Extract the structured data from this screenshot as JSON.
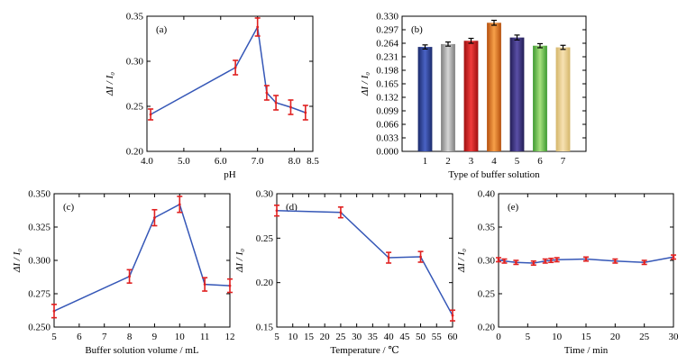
{
  "colors": {
    "line": "#3557b7",
    "errorbar": "#e02020",
    "bar_errorbar": "#000000"
  },
  "chart_data": [
    {
      "id": "a",
      "type": "line",
      "panel_label": "(a)",
      "xlabel": "pH",
      "ylabel": "ΔI / I₀",
      "xlim": [
        4.0,
        8.5
      ],
      "ylim": [
        0.2,
        0.35
      ],
      "xticks": [
        "4.0",
        "5.0",
        "6.0",
        "7.0",
        "8.0",
        "8.5"
      ],
      "xtick_values": [
        4.0,
        5.0,
        6.0,
        7.0,
        8.0,
        8.5
      ],
      "yticks": [
        "0.20",
        "0.25",
        "0.30",
        "0.35"
      ],
      "ytick_values": [
        0.2,
        0.25,
        0.3,
        0.35
      ],
      "x": [
        4.1,
        6.4,
        7.0,
        7.25,
        7.5,
        7.9,
        8.3
      ],
      "y": [
        0.241,
        0.293,
        0.338,
        0.265,
        0.254,
        0.249,
        0.243
      ],
      "err": [
        0.006,
        0.008,
        0.01,
        0.008,
        0.008,
        0.008,
        0.008
      ]
    },
    {
      "id": "b",
      "type": "bar",
      "panel_label": "(b)",
      "xlabel": "Type of buffer solution",
      "ylabel": "ΔI / I₀",
      "categories": [
        "1",
        "2",
        "3",
        "4",
        "5",
        "6",
        "7"
      ],
      "values": [
        0.255,
        0.262,
        0.27,
        0.314,
        0.278,
        0.258,
        0.254
      ],
      "err": [
        0.005,
        0.005,
        0.006,
        0.006,
        0.006,
        0.005,
        0.005
      ],
      "bar_colors": [
        [
          "#1b2a6b",
          "#4a63c4"
        ],
        [
          "#7d7d7d",
          "#d6d6d6"
        ],
        [
          "#9e0f0f",
          "#f03c3c"
        ],
        [
          "#b5500d",
          "#f7a04a"
        ],
        [
          "#221d55",
          "#5a4fa6"
        ],
        [
          "#3d9a30",
          "#a6e07e"
        ],
        [
          "#d4b56a",
          "#f7e2b2"
        ]
      ],
      "ylim": [
        0.0,
        0.33
      ],
      "yticks": [
        "0.000",
        "0.033",
        "0.066",
        "0.099",
        "0.132",
        "0.165",
        "0.198",
        "0.231",
        "0.264",
        "0.297",
        "0.330"
      ],
      "ytick_values": [
        0.0,
        0.033,
        0.066,
        0.099,
        0.132,
        0.165,
        0.198,
        0.231,
        0.264,
        0.297,
        0.33
      ]
    },
    {
      "id": "c",
      "type": "line",
      "panel_label": "(c)",
      "xlabel": "Buffer solution volume / mL",
      "ylabel": "ΔI / I₀",
      "xlim": [
        5,
        12
      ],
      "ylim": [
        0.25,
        0.35
      ],
      "xticks": [
        "5",
        "6",
        "7",
        "8",
        "9",
        "10",
        "11",
        "12"
      ],
      "xtick_values": [
        5,
        6,
        7,
        8,
        9,
        10,
        11,
        12
      ],
      "yticks": [
        "0.250",
        "0.275",
        "0.300",
        "0.325",
        "0.350"
      ],
      "ytick_values": [
        0.25,
        0.275,
        0.3,
        0.325,
        0.35
      ],
      "x": [
        5,
        8,
        9,
        10,
        11,
        12
      ],
      "y": [
        0.262,
        0.288,
        0.332,
        0.342,
        0.282,
        0.281
      ],
      "err": [
        0.005,
        0.005,
        0.006,
        0.006,
        0.005,
        0.005
      ]
    },
    {
      "id": "d",
      "type": "line",
      "panel_label": "(d)",
      "xlabel": "Temperature / ℃",
      "ylabel": "ΔI / I₀",
      "xlim": [
        5,
        60
      ],
      "ylim": [
        0.15,
        0.3
      ],
      "xticks": [
        "5",
        "10",
        "15",
        "20",
        "25",
        "30",
        "35",
        "40",
        "45",
        "50",
        "55",
        "60"
      ],
      "xtick_values": [
        5,
        10,
        15,
        20,
        25,
        30,
        35,
        40,
        45,
        50,
        55,
        60
      ],
      "yticks": [
        "0.15",
        "0.20",
        "0.25",
        "0.30"
      ],
      "ytick_values": [
        0.15,
        0.2,
        0.25,
        0.3
      ],
      "x": [
        5,
        25,
        40,
        50,
        60
      ],
      "y": [
        0.281,
        0.279,
        0.228,
        0.229,
        0.163
      ],
      "err": [
        0.006,
        0.006,
        0.006,
        0.006,
        0.006
      ]
    },
    {
      "id": "e",
      "type": "line",
      "panel_label": "(e)",
      "xlabel": "Time / min",
      "ylabel": "ΔI / I₀",
      "xlim": [
        0,
        30
      ],
      "ylim": [
        0.2,
        0.4
      ],
      "xticks": [
        "0",
        "5",
        "10",
        "15",
        "20",
        "25",
        "30"
      ],
      "xtick_values": [
        0,
        5,
        10,
        15,
        20,
        25,
        30
      ],
      "yticks": [
        "0.20",
        "0.25",
        "0.30",
        "0.35",
        "0.40"
      ],
      "ytick_values": [
        0.2,
        0.25,
        0.3,
        0.35,
        0.4
      ],
      "x": [
        0,
        1,
        3,
        6,
        8,
        9,
        10,
        15,
        20,
        25,
        30
      ],
      "y": [
        0.301,
        0.299,
        0.297,
        0.296,
        0.299,
        0.3,
        0.301,
        0.302,
        0.299,
        0.297,
        0.305
      ],
      "err": [
        0.003,
        0.003,
        0.003,
        0.003,
        0.003,
        0.003,
        0.003,
        0.003,
        0.003,
        0.003,
        0.003
      ]
    }
  ]
}
